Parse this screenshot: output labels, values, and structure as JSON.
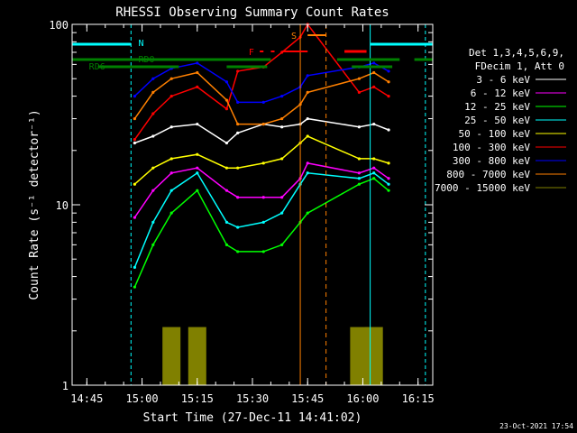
{
  "chart_data": {
    "type": "line",
    "title": "RHESSI Observing Summary Count Rates",
    "xlabel": "Start Time (27-Dec-11 14:41:02)",
    "ylabel": "Count Rate (s⁻¹ detector⁻¹)",
    "yscale": "log",
    "ylim": [
      1,
      100
    ],
    "xlim": [
      "14:41",
      "16:19"
    ],
    "x_ticks": [
      "14:45",
      "15:00",
      "15:15",
      "15:30",
      "15:45",
      "16:00",
      "16:15"
    ],
    "y_ticks": [
      "1",
      "10",
      "100"
    ],
    "legend_header": [
      "Det 1,3,4,5,6,9,",
      "FDecim 1, Att 0"
    ],
    "legend_position": "right",
    "timestamp": "23-Oct-2021 17:54",
    "series": [
      {
        "name": "3 - 6 keV",
        "color": "#ffffff",
        "x": [
          "14:58",
          "15:03",
          "15:08",
          "15:15",
          "15:23",
          "15:26",
          "15:33",
          "15:38",
          "15:43",
          "15:45",
          "15:59",
          "16:03",
          "16:07"
        ],
        "y": [
          22,
          24,
          27,
          28,
          22,
          25,
          28,
          27,
          28,
          30,
          27,
          28,
          26
        ]
      },
      {
        "name": "6 - 12 keV",
        "color": "#ff00ff",
        "x": [
          "14:58",
          "15:03",
          "15:08",
          "15:15",
          "15:23",
          "15:26",
          "15:33",
          "15:38",
          "15:43",
          "15:45",
          "15:59",
          "16:03",
          "16:07"
        ],
        "y": [
          8.5,
          12,
          15,
          16,
          12,
          11,
          11,
          11,
          14,
          17,
          15,
          16,
          14
        ]
      },
      {
        "name": "12 - 25 keV",
        "color": "#00ff00",
        "x": [
          "14:58",
          "15:03",
          "15:08",
          "15:15",
          "15:23",
          "15:26",
          "15:33",
          "15:38",
          "15:43",
          "15:45",
          "15:59",
          "16:03",
          "16:07"
        ],
        "y": [
          3.5,
          6,
          9,
          12,
          6,
          5.5,
          5.5,
          6,
          8,
          9,
          13,
          14,
          12
        ]
      },
      {
        "name": "25 - 50 keV",
        "color": "#00ffff",
        "x": [
          "14:58",
          "15:03",
          "15:08",
          "15:15",
          "15:23",
          "15:26",
          "15:33",
          "15:38",
          "15:43",
          "15:45",
          "15:59",
          "16:03",
          "16:07"
        ],
        "y": [
          4.5,
          8,
          12,
          15,
          8,
          7.5,
          8,
          9,
          13,
          15,
          14,
          15,
          13
        ]
      },
      {
        "name": "50 - 100 keV",
        "color": "#ffff00",
        "x": [
          "14:58",
          "15:03",
          "15:08",
          "15:15",
          "15:23",
          "15:26",
          "15:33",
          "15:38",
          "15:43",
          "15:45",
          "15:59",
          "16:03",
          "16:07"
        ],
        "y": [
          13,
          16,
          18,
          19,
          16,
          16,
          17,
          18,
          22,
          24,
          18,
          18,
          17
        ]
      },
      {
        "name": "100 - 300 keV",
        "color": "#ff0000",
        "x": [
          "14:58",
          "15:03",
          "15:08",
          "15:15",
          "15:23",
          "15:26",
          "15:33",
          "15:38",
          "15:43",
          "15:45",
          "15:59",
          "16:03",
          "16:07"
        ],
        "y": [
          23,
          32,
          40,
          45,
          34,
          55,
          58,
          70,
          85,
          100,
          42,
          45,
          40
        ]
      },
      {
        "name": "300 - 800 keV",
        "color": "#0000ff",
        "x": [
          "14:58",
          "15:03",
          "15:08",
          "15:15",
          "15:23",
          "15:26",
          "15:33",
          "15:38",
          "15:43",
          "15:45",
          "15:59",
          "16:03",
          "16:07"
        ],
        "y": [
          40,
          50,
          57,
          61,
          48,
          37,
          37,
          40,
          45,
          52,
          58,
          61,
          55
        ]
      },
      {
        "name": "800 - 7000 keV",
        "color": "#ff8000",
        "x": [
          "14:58",
          "15:03",
          "15:08",
          "15:15",
          "15:23",
          "15:26",
          "15:33",
          "15:38",
          "15:43",
          "15:45",
          "15:59",
          "16:03",
          "16:07"
        ],
        "y": [
          30,
          42,
          50,
          54,
          38,
          28,
          28,
          30,
          36,
          42,
          50,
          54,
          48
        ]
      },
      {
        "name": "7000 - 15000 keV",
        "color": "#808000",
        "x": [
          "15:08",
          "15:15",
          "15:59",
          "16:03"
        ],
        "y": [
          1.5,
          1.5,
          1.5,
          1.5
        ]
      }
    ],
    "annotations": [
      {
        "label": "N",
        "color": "#00ffff"
      },
      {
        "label": "RD0",
        "color": "#008000"
      },
      {
        "label": "RD6",
        "color": "#008000"
      },
      {
        "label": "F",
        "color": "#ff0000"
      },
      {
        "label": "S",
        "color": "#ff8000"
      }
    ]
  }
}
